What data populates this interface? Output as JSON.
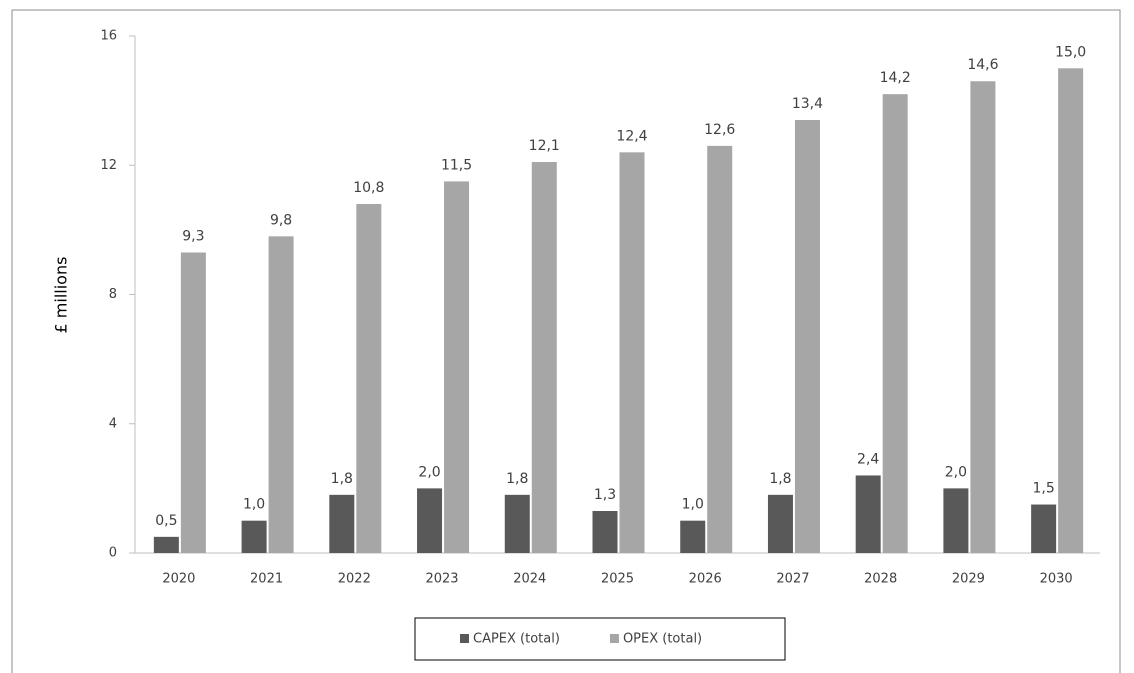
{
  "chart_data": {
    "type": "bar",
    "y_label": "£ millions",
    "categories": [
      "2020",
      "2021",
      "2022",
      "2023",
      "2024",
      "2025",
      "2026",
      "2027",
      "2028",
      "2029",
      "2030"
    ],
    "series": [
      {
        "name": "CAPEX (total)",
        "color": "#595959",
        "values": [
          0.5,
          1.0,
          1.8,
          2.0,
          1.8,
          1.3,
          1.0,
          1.8,
          2.4,
          2.0,
          1.5
        ],
        "value_labels": [
          "0,5",
          "1,0",
          "1,8",
          "2,0",
          "1,8",
          "1,3",
          "1,0",
          "1,8",
          "2,4",
          "2,0",
          "1,5"
        ]
      },
      {
        "name": "OPEX (total)",
        "color": "#a6a6a6",
        "values": [
          9.3,
          9.8,
          10.8,
          11.5,
          12.1,
          12.4,
          12.6,
          13.4,
          14.2,
          14.6,
          15.0
        ],
        "value_labels": [
          "9,3",
          "9,8",
          "10,8",
          "11,5",
          "12,1",
          "12,4",
          "12,6",
          "13,4",
          "14,2",
          "14,6",
          "15,0"
        ]
      }
    ],
    "ylim": [
      0,
      16
    ],
    "yticks": [
      0,
      4,
      8,
      12,
      16
    ],
    "grid": false,
    "legend": "bottom"
  }
}
